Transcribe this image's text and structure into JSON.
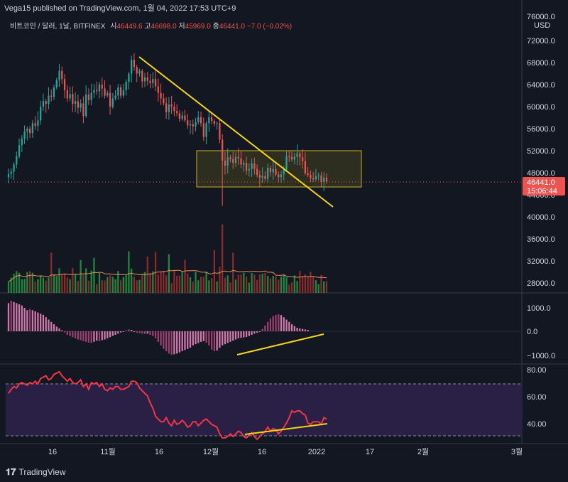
{
  "header": {
    "publisher": "Vega15 published on TradingView.com, 1월 04, 2022 17:53 UTC+9",
    "symbol": "비트코인 / 달러, 1날, BITFINEX",
    "ohlc": {
      "o_label": "시",
      "o": "46449.6",
      "h_label": "고",
      "h": "46698.0",
      "l_label": "저",
      "l": "45969.0",
      "c_label": "종",
      "c": "46441.0",
      "change": "−7.0 (−0.02%)"
    }
  },
  "price_axis": {
    "currency": "USD",
    "top_label": "76000.0",
    "ticks": [
      "72000.0",
      "68000.0",
      "64000.0",
      "60000.0",
      "56000.0",
      "52000.0",
      "48000.0",
      "44000.0",
      "40000.0",
      "36000.0",
      "32000.0",
      "28000.0"
    ],
    "last_price": "46441.0",
    "countdown": "15:06:44"
  },
  "macd_axis": {
    "ticks": [
      "1000.0",
      "0.0",
      "−1000.0"
    ]
  },
  "rsi_axis": {
    "ticks": [
      "80.00",
      "60.00",
      "40.00"
    ]
  },
  "time_axis": {
    "labels": [
      "16",
      "11월",
      "16",
      "12월",
      "16",
      "2022",
      "17",
      "2월",
      "3월"
    ]
  },
  "footer": {
    "brand": "TradingView"
  },
  "colors": {
    "background": "#131722",
    "up": "#26a69a",
    "down": "#ef5350",
    "trendline": "#f5d516",
    "rsi_line": "#f23645",
    "rsi_fill": "#2a1f45",
    "macd_hist_pos": "#9b3f6f",
    "macd_hist_pos_light": "#d278ad",
    "vol_ma": "#e58f5a"
  },
  "chart_data": [
    {
      "type": "candlestick",
      "name": "BTC/USD daily",
      "ylim": [
        26000,
        78000
      ],
      "close": [
        47800,
        48200,
        49500,
        51000,
        53000,
        54200,
        55500,
        56000,
        55200,
        57000,
        56500,
        57500,
        60000,
        61000,
        60500,
        62000,
        61800,
        63500,
        64800,
        66500,
        65000,
        63000,
        61500,
        62300,
        60500,
        61000,
        59800,
        60600,
        58300,
        62200,
        61200,
        62500,
        63000,
        62800,
        64000,
        63300,
        62000,
        62500,
        60000,
        61500,
        62000,
        63500,
        62000,
        63000,
        64500,
        66000,
        68500,
        67200,
        66000,
        66500,
        64600,
        65300,
        64700,
        64300,
        65000,
        63700,
        62500,
        61500,
        60600,
        59000,
        60400,
        60000,
        59200,
        58800,
        57800,
        58400,
        57500,
        56600,
        56800,
        56400,
        57200,
        58100,
        57000,
        54500,
        57000,
        58100,
        57400,
        56900,
        57000,
        54000,
        50200,
        49300,
        50800,
        50500,
        49800,
        50900,
        50600,
        49500,
        49800,
        48400,
        48700,
        49700,
        48700,
        47600,
        47100,
        47400,
        46900,
        48900,
        48100,
        48700,
        47700,
        47200,
        47700,
        48600,
        51000,
        50900,
        50400,
        50900,
        51500,
        50800,
        50100,
        47900,
        47600,
        47000,
        46800,
        47400,
        47500,
        46300,
        47100,
        46441
      ],
      "volume_ylim": [
        0,
        27000
      ],
      "volume_ma_note": "orange moving average of volume"
    },
    {
      "type": "histogram",
      "name": "MACD histogram",
      "ylim": [
        -1300,
        1350
      ],
      "values": [
        1200,
        1300,
        1250,
        1200,
        1150,
        1100,
        1000,
        900,
        950,
        900,
        850,
        800,
        750,
        700,
        600,
        500,
        400,
        300,
        200,
        120,
        40,
        -50,
        -150,
        -200,
        -250,
        -300,
        -350,
        -380,
        -420,
        -450,
        -480,
        -500,
        -450,
        -400,
        -420,
        -380,
        -350,
        -300,
        -250,
        -200,
        -150,
        -100,
        -50,
        -10,
        40,
        80,
        60,
        -20,
        -60,
        -80,
        -100,
        -120,
        -100,
        -150,
        -200,
        -300,
        -450,
        -600,
        -750,
        -850,
        -950,
        -1000,
        -980,
        -950,
        -900,
        -850,
        -800,
        -750,
        -700,
        -600,
        -550,
        -500,
        -450,
        -420,
        -480,
        -600,
        -780,
        -850,
        -820,
        -700,
        -600,
        -550,
        -500,
        -450,
        -400,
        -350,
        -300,
        -280,
        -260,
        -240,
        -200,
        -150,
        -100,
        -60,
        0,
        100,
        250,
        400,
        550,
        650,
        700,
        720,
        690,
        600,
        500,
        400,
        300,
        220,
        150,
        120,
        100,
        80,
        60
      ],
      "levels": [
        1000,
        0,
        -1000
      ]
    },
    {
      "type": "line",
      "name": "RSI",
      "ylim": [
        25,
        85
      ],
      "band": [
        30,
        70
      ],
      "values": [
        63,
        66,
        68,
        67,
        70,
        71,
        70,
        69,
        71,
        70,
        72,
        70,
        74,
        75,
        76,
        73,
        74,
        77,
        78,
        79,
        76,
        74,
        72,
        74,
        71,
        70,
        71,
        73,
        68,
        70,
        66,
        71,
        70,
        71,
        68,
        70,
        66,
        65,
        67,
        66,
        68,
        68,
        66,
        66,
        67,
        68,
        72,
        72,
        71,
        67,
        65,
        63,
        61,
        56,
        52,
        46,
        44,
        42,
        42,
        45,
        41,
        39,
        43,
        40,
        41,
        43,
        41,
        38,
        39,
        42,
        42,
        39,
        41,
        43,
        44,
        42,
        40,
        39,
        38,
        33,
        30,
        30,
        31,
        33,
        31,
        33,
        35,
        34,
        31,
        30,
        32,
        34,
        31,
        29,
        31,
        33,
        35,
        38,
        35,
        37,
        36,
        33,
        35,
        38,
        41,
        45,
        50,
        49,
        50,
        50,
        48,
        47,
        41,
        40,
        42,
        42,
        42,
        40,
        45,
        44,
        43,
        42
      ]
    }
  ]
}
